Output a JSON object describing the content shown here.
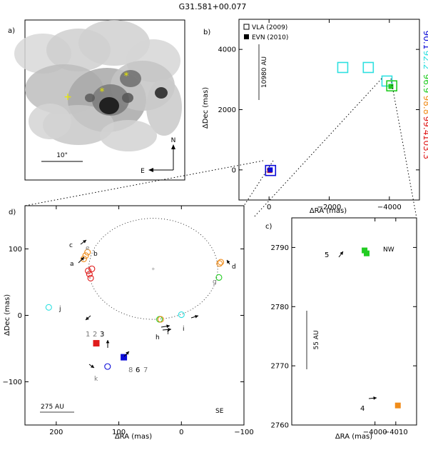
{
  "title": "G31.581+00.077",
  "colors": {
    "blue": "#0b0bd8",
    "cyan": "#2ee0e0",
    "green": "#22cc22",
    "orange": "#f08c1a",
    "red": "#e01b1b",
    "black": "#000000",
    "gray": "#888888"
  },
  "velocity_scale": [
    {
      "label": "90.1",
      "color": "#0b0bd8"
    },
    {
      "label": "92.2",
      "color": "#2ee0e0"
    },
    {
      "label": "96.9",
      "color": "#22cc22"
    },
    {
      "label": "98.8",
      "color": "#f08c1a"
    },
    {
      "label": "99.4",
      "color": "#e01b1b"
    },
    {
      "label": "103.3",
      "color": "#e01b1b"
    }
  ],
  "panel_a": {
    "label": "a)",
    "scale_label": "10\"",
    "compass_n": "N",
    "compass_e": "E",
    "markers": [
      {
        "symbol": "+",
        "name": "plus-marker"
      },
      {
        "symbol": "*",
        "name": "star-marker-1"
      },
      {
        "symbol": "*",
        "name": "star-marker-2"
      }
    ]
  },
  "chart_data": [
    {
      "panel": "b",
      "label": "b)",
      "type": "scatter",
      "xlabel": "ΔRA (mas)",
      "ylabel": "ΔDec (mas)",
      "xlim": [
        1000,
        -5000
      ],
      "ylim": [
        -1000,
        5000
      ],
      "xticks": [
        0,
        -2000,
        -4000
      ],
      "xtick_labels": [
        "0",
        "−2000",
        "−4000"
      ],
      "yticks": [
        0,
        2000,
        4000
      ],
      "ytick_labels": [
        "0",
        "2000",
        "4000"
      ],
      "legend": [
        {
          "label": "VLA (2009)",
          "marker": "open-square"
        },
        {
          "label": "EVN (2010)",
          "marker": "filled-square"
        }
      ],
      "scale_bar_label": "10980 AU",
      "vla_points": [
        {
          "x": -50,
          "y": -20,
          "color": "#0b0bd8"
        },
        {
          "x": -2450,
          "y": 3400,
          "color": "#2ee0e0"
        },
        {
          "x": -3300,
          "y": 3400,
          "color": "#2ee0e0"
        },
        {
          "x": -3920,
          "y": 2950,
          "color": "#2ee0e0"
        },
        {
          "x": -4080,
          "y": 2790,
          "color": "#22cc22"
        }
      ],
      "evn_points": [
        {
          "x": -20,
          "y": -20,
          "color": "#e01b1b"
        },
        {
          "x": -40,
          "y": 0,
          "color": "#0b0bd8"
        },
        {
          "x": -4050,
          "y": 2770,
          "color": "#22cc22"
        }
      ]
    },
    {
      "panel": "d",
      "label": "d)",
      "type": "scatter",
      "corner_label": "SE",
      "xlabel": "ΔRA (mas)",
      "ylabel": "ΔDec (mas)",
      "xlim": [
        250,
        -100
      ],
      "ylim": [
        -165,
        165
      ],
      "xticks": [
        200,
        100,
        0,
        -100
      ],
      "xtick_labels": [
        "200",
        "100",
        "0",
        "−100"
      ],
      "yticks": [
        100,
        0,
        -100
      ],
      "ytick_labels": [
        "100",
        "0",
        "−100"
      ],
      "scale_bar_label": "275 AU",
      "ellipse": {
        "cx": 45,
        "cy": 70,
        "rx": 103,
        "ry": 76
      },
      "spot_labels": [
        "a",
        "b",
        "c",
        "d",
        "e",
        "f",
        "g",
        "h",
        "i",
        "j",
        "k"
      ],
      "number_labels": [
        "1",
        "2",
        "3",
        "8",
        "6",
        "7"
      ],
      "open_circles": [
        {
          "x": 150,
          "y": 95,
          "color": "#f08c1a"
        },
        {
          "x": 153,
          "y": 90,
          "color": "#f08c1a"
        },
        {
          "x": 156,
          "y": 85,
          "color": "#f08c1a"
        },
        {
          "x": 143,
          "y": 70,
          "color": "#e01b1b"
        },
        {
          "x": 149,
          "y": 67,
          "color": "#e01b1b"
        },
        {
          "x": 147,
          "y": 62,
          "color": "#e01b1b"
        },
        {
          "x": 145,
          "y": 56,
          "color": "#e01b1b"
        },
        {
          "x": -63,
          "y": 80,
          "color": "#f08c1a"
        },
        {
          "x": -61,
          "y": 78,
          "color": "#f08c1a"
        },
        {
          "x": -60,
          "y": 57,
          "color": "#22cc22"
        },
        {
          "x": 35,
          "y": -6,
          "color": "#22cc22"
        },
        {
          "x": 33,
          "y": -6,
          "color": "#f08c1a"
        },
        {
          "x": 0,
          "y": 1,
          "color": "#2ee0e0"
        },
        {
          "x": 212,
          "y": 12,
          "color": "#2ee0e0"
        },
        {
          "x": 118,
          "y": -77,
          "color": "#0b0bd8"
        }
      ],
      "filled_squares": [
        {
          "x": 136,
          "y": -42,
          "color": "#e01b1b"
        },
        {
          "x": 92,
          "y": -63,
          "color": "#0b0bd8"
        }
      ]
    },
    {
      "panel": "c",
      "label": "c)",
      "type": "scatter",
      "corner_label": "NW",
      "xlabel": "ΔRA (mas)",
      "ylabel": "",
      "xlim": [
        -3960,
        -4020
      ],
      "ylim": [
        2760,
        2795
      ],
      "xticks": [
        -4000,
        -4010
      ],
      "xtick_labels": [
        "−4000",
        "−4010"
      ],
      "yticks": [
        2760,
        2770,
        2780,
        2790
      ],
      "ytick_labels": [
        "2760",
        "2770",
        "2780",
        "2790"
      ],
      "scale_bar_label": "55 AU",
      "spot_numbers": [
        "5",
        "4"
      ],
      "filled_squares": [
        {
          "x": -3995,
          "y": 2789.5,
          "color": "#22cc22"
        },
        {
          "x": -3996,
          "y": 2789,
          "color": "#22cc22"
        },
        {
          "x": -4011,
          "y": 2763.3,
          "color": "#f08c1a"
        }
      ]
    }
  ]
}
